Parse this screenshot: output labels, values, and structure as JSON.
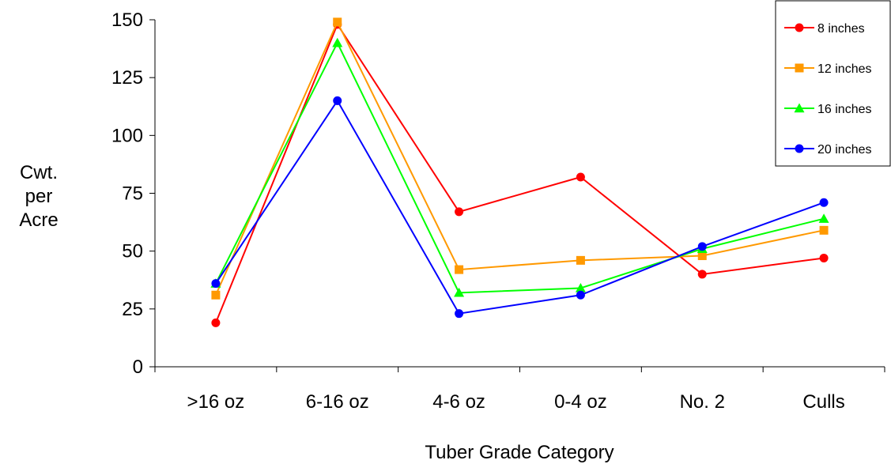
{
  "chart_data": {
    "type": "line",
    "title": "",
    "xlabel": "Tuber Grade Category",
    "ylabel_lines": [
      "Cwt.",
      "per",
      "Acre"
    ],
    "categories": [
      ">16 oz",
      "6-16 oz",
      "4-6 oz",
      "0-4 oz",
      "No. 2",
      "Culls"
    ],
    "ylim": [
      0,
      150
    ],
    "yticks": [
      0,
      25,
      50,
      75,
      100,
      125,
      150
    ],
    "grid": false,
    "legend_position": "top-right",
    "series": [
      {
        "name": "8 inches",
        "color": "#ff0000",
        "marker": "circle",
        "values": [
          19,
          148,
          67,
          82,
          40,
          47
        ]
      },
      {
        "name": "12 inches",
        "color": "#ff9900",
        "marker": "square",
        "values": [
          31,
          149,
          42,
          46,
          48,
          59
        ]
      },
      {
        "name": "16 inches",
        "color": "#00ff00",
        "marker": "triangle",
        "values": [
          36,
          140,
          32,
          34,
          51,
          64
        ]
      },
      {
        "name": "20 inches",
        "color": "#0000ff",
        "marker": "circle",
        "values": [
          36,
          115,
          23,
          31,
          52,
          71
        ]
      }
    ]
  }
}
